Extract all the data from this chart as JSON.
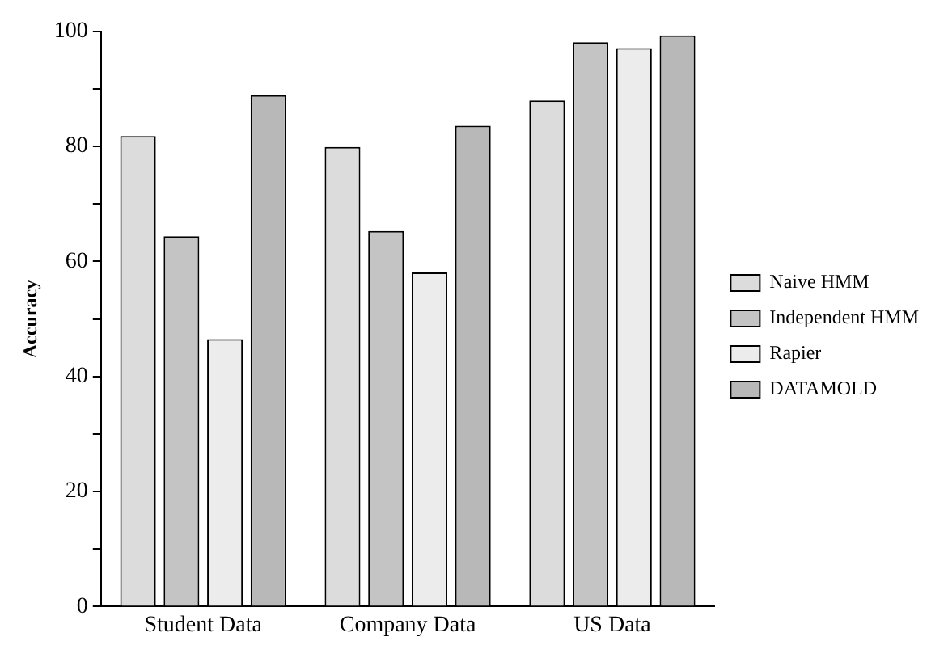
{
  "chart_data": {
    "type": "bar",
    "ylabel": "Accuracy",
    "categories": [
      "Student Data",
      "Company Data",
      "US Data"
    ],
    "series": [
      {
        "name": "Naive HMM",
        "color": "#dcdcdc",
        "values": [
          81.8,
          79.9,
          88.0
        ]
      },
      {
        "name": "Independent HMM",
        "color": "#c4c4c4",
        "values": [
          64.4,
          65.3,
          98.1
        ]
      },
      {
        "name": "Rapier",
        "color": "#ececec",
        "values": [
          46.5,
          58.1,
          97.1
        ]
      },
      {
        "name": "DATAMOLD",
        "color": "#b8b8b8",
        "values": [
          88.9,
          83.6,
          99.3
        ]
      }
    ],
    "ylim": [
      0,
      100
    ],
    "yticks": [
      0,
      {
        "value": 10,
        "label": null
      },
      20,
      {
        "value": 30,
        "label": null
      },
      40,
      {
        "value": 50,
        "label": null
      },
      60,
      {
        "value": 70,
        "label": null
      },
      80,
      {
        "value": 90,
        "label": null
      },
      100
    ],
    "grid": false,
    "legend": "right"
  }
}
